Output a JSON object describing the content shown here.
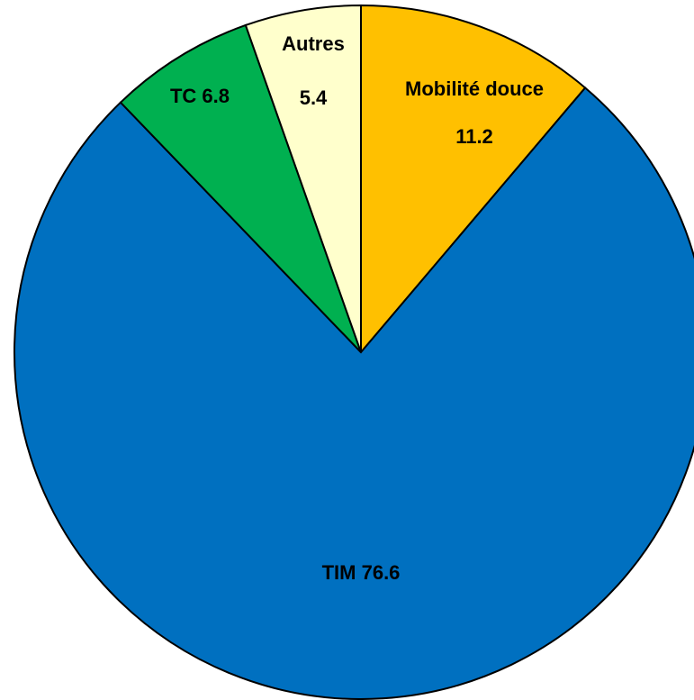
{
  "chart_data": {
    "type": "pie",
    "categories": [
      "Mobilité douce",
      "TIM",
      "TC",
      "Autres"
    ],
    "values": [
      11.2,
      76.6,
      6.8,
      5.4
    ],
    "colors": [
      "#FFC000",
      "#0070C0",
      "#00B050",
      "#FFFFCC"
    ]
  }
}
